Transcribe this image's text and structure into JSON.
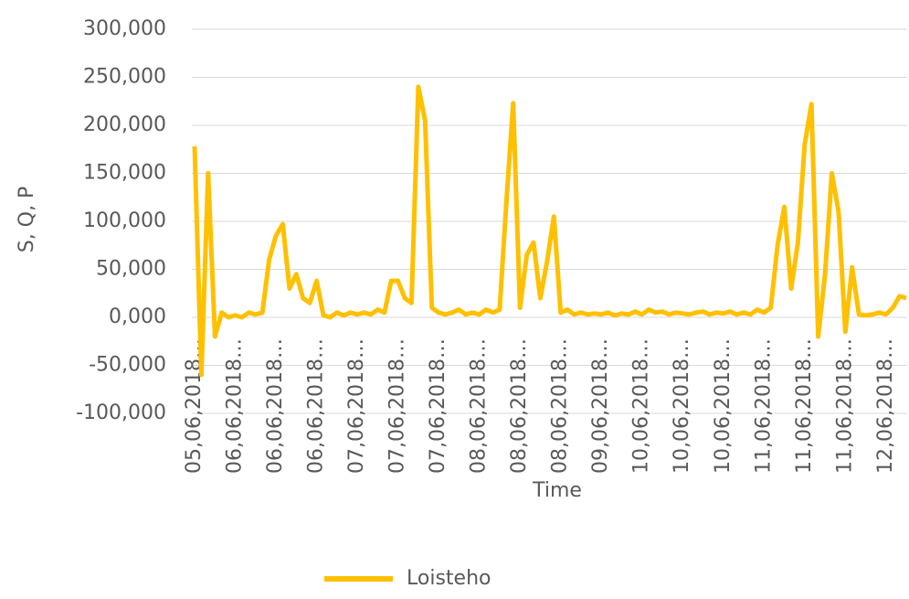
{
  "chart_data": {
    "type": "line",
    "y_label": "S, Q, P",
    "x_label": "Time",
    "categories": [
      "05,06,2018…",
      null,
      null,
      null,
      null,
      null,
      "06,06,2018…",
      null,
      null,
      null,
      null,
      null,
      "06,06,2018…",
      null,
      null,
      null,
      null,
      null,
      "06,06,2018…",
      null,
      null,
      null,
      null,
      null,
      "07,06,2018…",
      null,
      null,
      null,
      null,
      null,
      "07,06,2018…",
      null,
      null,
      null,
      null,
      null,
      "07,06,2018…",
      null,
      null,
      null,
      null,
      null,
      "08,06,2018…",
      null,
      null,
      null,
      null,
      null,
      "08,06,2018…",
      null,
      null,
      null,
      null,
      null,
      "08,06,2018…",
      null,
      null,
      null,
      null,
      null,
      "09,06,2018…",
      null,
      null,
      null,
      null,
      null,
      "10,06,2018…",
      null,
      null,
      null,
      null,
      null,
      "10,06,2018…",
      null,
      null,
      null,
      null,
      null,
      "10,06,2018…",
      null,
      null,
      null,
      null,
      null,
      "11,06,2018…",
      null,
      null,
      null,
      null,
      null,
      "11,06,2018…",
      null,
      null,
      null,
      null,
      null,
      "11,06,2018…",
      null,
      null,
      null,
      null,
      null,
      "12,06,2018…",
      null,
      null,
      null
    ],
    "series": [
      {
        "name": "Loisteho",
        "color": "#ffc000",
        "values": [
          178000,
          -60000,
          150000,
          -20000,
          5000,
          0,
          2000,
          0,
          5000,
          3000,
          5000,
          60000,
          85000,
          97000,
          30000,
          45000,
          20000,
          15000,
          38000,
          2000,
          0,
          5000,
          2000,
          5000,
          3000,
          5000,
          3000,
          8000,
          5000,
          38000,
          38000,
          20000,
          15000,
          240000,
          205000,
          10000,
          5000,
          3000,
          5000,
          8000,
          3000,
          5000,
          3000,
          8000,
          5000,
          8000,
          120000,
          223000,
          10000,
          65000,
          78000,
          20000,
          58000,
          105000,
          5000,
          8000,
          3000,
          5000,
          3000,
          4000,
          3000,
          5000,
          2000,
          4000,
          3000,
          6000,
          3000,
          8000,
          5000,
          6000,
          3000,
          5000,
          4000,
          3000,
          5000,
          6000,
          3000,
          5000,
          4000,
          6000,
          3000,
          5000,
          3000,
          8000,
          5000,
          10000,
          75000,
          115000,
          30000,
          78000,
          180000,
          222000,
          -20000,
          45000,
          150000,
          110000,
          -15000,
          52000,
          3000,
          2000,
          3000,
          5000,
          3000,
          10000,
          22000,
          20000
        ]
      }
    ],
    "ylim": [
      -100000,
      300000
    ],
    "yticks": [
      {
        "value": -100000,
        "label": "-100,000"
      },
      {
        "value": -50000,
        "label": "-50,000"
      },
      {
        "value": 0,
        "label": "0,000"
      },
      {
        "value": 50000,
        "label": "50,000"
      },
      {
        "value": 100000,
        "label": "100,000"
      },
      {
        "value": 150000,
        "label": "150,000"
      },
      {
        "value": 200000,
        "label": "200,000"
      },
      {
        "value": 250000,
        "label": "250,000"
      },
      {
        "value": 300000,
        "label": "300,000"
      }
    ],
    "grid": true
  }
}
